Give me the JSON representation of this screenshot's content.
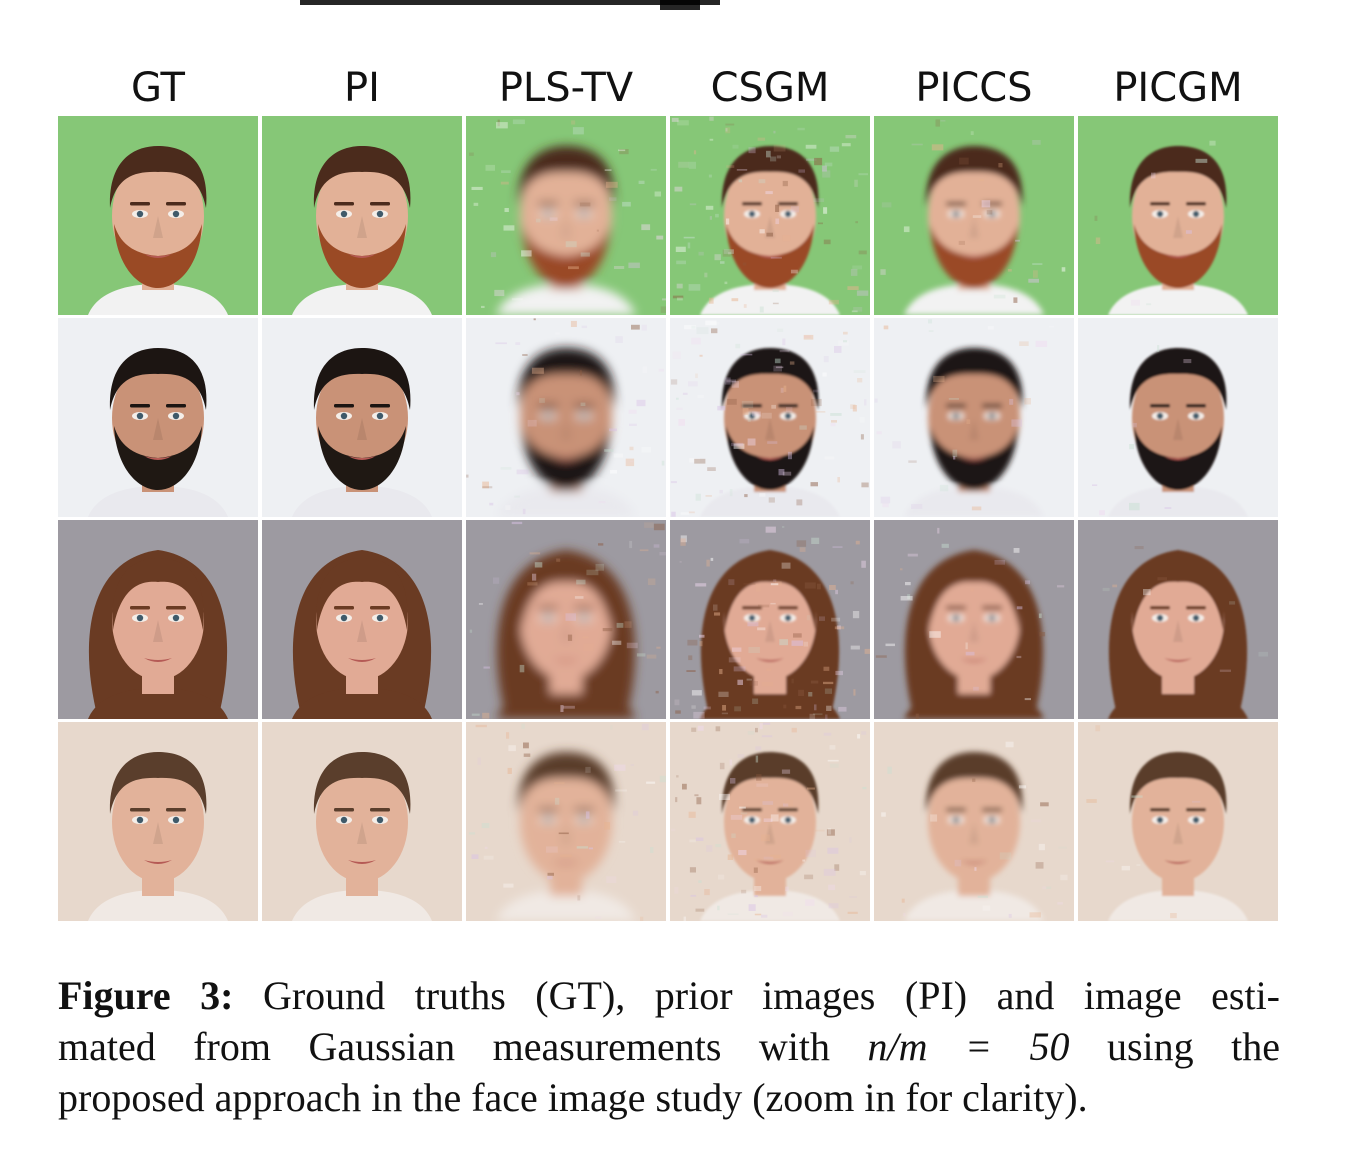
{
  "figure": {
    "columns": [
      "GT",
      "PI",
      "PLS-TV",
      "CSGM",
      "PICCS",
      "PICGM"
    ],
    "rows": [
      {
        "subject": "bearded-man-green-background",
        "bg": "#86c777",
        "skin": "#e2b197",
        "hair": "#4b2b1c",
        "beard": "#9a4a25",
        "shirt": "#f2f2f2",
        "style": "short-beard"
      },
      {
        "subject": "dark-beard-man-white-background",
        "bg": "#eef0f3",
        "skin": "#c99277",
        "hair": "#1c1512",
        "beard": "#1f1813",
        "shirt": "#e9e9ee",
        "style": "short-beard"
      },
      {
        "subject": "long-haired-woman-gray-background",
        "bg": "#9d9aa1",
        "skin": "#e1aa95",
        "hair": "#6a3b23",
        "beard": "",
        "shirt": "#6a3b23",
        "style": "long-hair"
      },
      {
        "subject": "short-haired-man-beige-background",
        "bg": "#e7d8cc",
        "skin": "#e2b29a",
        "hair": "#5a3e2c",
        "beard": "",
        "shirt": "#f0e9e4",
        "style": "short-hair"
      }
    ],
    "icons": [
      "face-photo-icon"
    ]
  },
  "caption": {
    "label": "Figure 3:",
    "line1_rest": "Ground truths (GT), prior images (PI) and image esti-",
    "line2_a": "mated from Gaussian measurements with",
    "math": "n/m = 50",
    "line2_b": "using the",
    "line3": "proposed approach in the face image study (zoom in for clarity)."
  }
}
